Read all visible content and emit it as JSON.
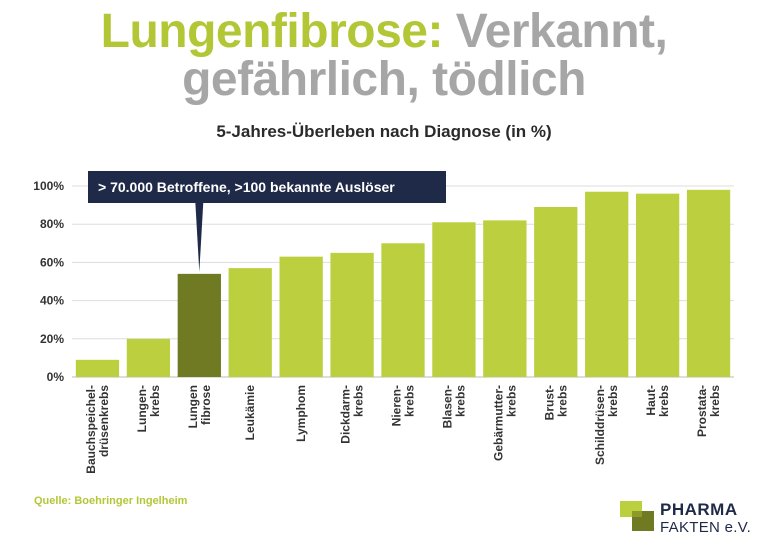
{
  "header": {
    "title_part1": "Lungenfibrose:",
    "title_part2": "Verkannt,",
    "title_line2": "gefährlich, tödlich",
    "subtitle": "5-Jahres-Überleben nach Diagnose (in %)"
  },
  "chart_data": {
    "type": "bar",
    "categories": [
      [
        "Bauchspeichel-",
        "drüsenkrebs"
      ],
      [
        "Lungen-",
        "krebs"
      ],
      [
        "Lungen",
        "fibrose"
      ],
      [
        "Leukämie"
      ],
      [
        "Lymphom"
      ],
      [
        "Dickdarm-",
        "krebs"
      ],
      [
        "Nieren-",
        "krebs"
      ],
      [
        "Blasen-",
        "krebs"
      ],
      [
        "Gebärmutter-",
        "krebs"
      ],
      [
        "Brust-",
        "krebs"
      ],
      [
        "Schilddrüsen-",
        "krebs"
      ],
      [
        "Haut-",
        "krebs"
      ],
      [
        "Prostata-",
        "krebs"
      ]
    ],
    "values": [
      9,
      20,
      54,
      57,
      63,
      65,
      70,
      81,
      82,
      89,
      97,
      96,
      98
    ],
    "highlight_index": 2,
    "yticks": [
      "0%",
      "20%",
      "40%",
      "60%",
      "80%",
      "100%"
    ],
    "ylim": [
      0,
      100
    ],
    "grid": true,
    "colors": {
      "bar": "#bccf3f",
      "highlight": "#6f7a22",
      "grid": "#dddddd",
      "callout": "#1f2a48"
    },
    "annotation": {
      "text": "> 70.000 Betroffene, >100 bekannte Auslöser",
      "target_index": 2
    }
  },
  "footer": {
    "source": "Quelle: Boehringer Ingelheim",
    "logo_line1": "PHARMA",
    "logo_line2": "FAKTEN e.V."
  }
}
